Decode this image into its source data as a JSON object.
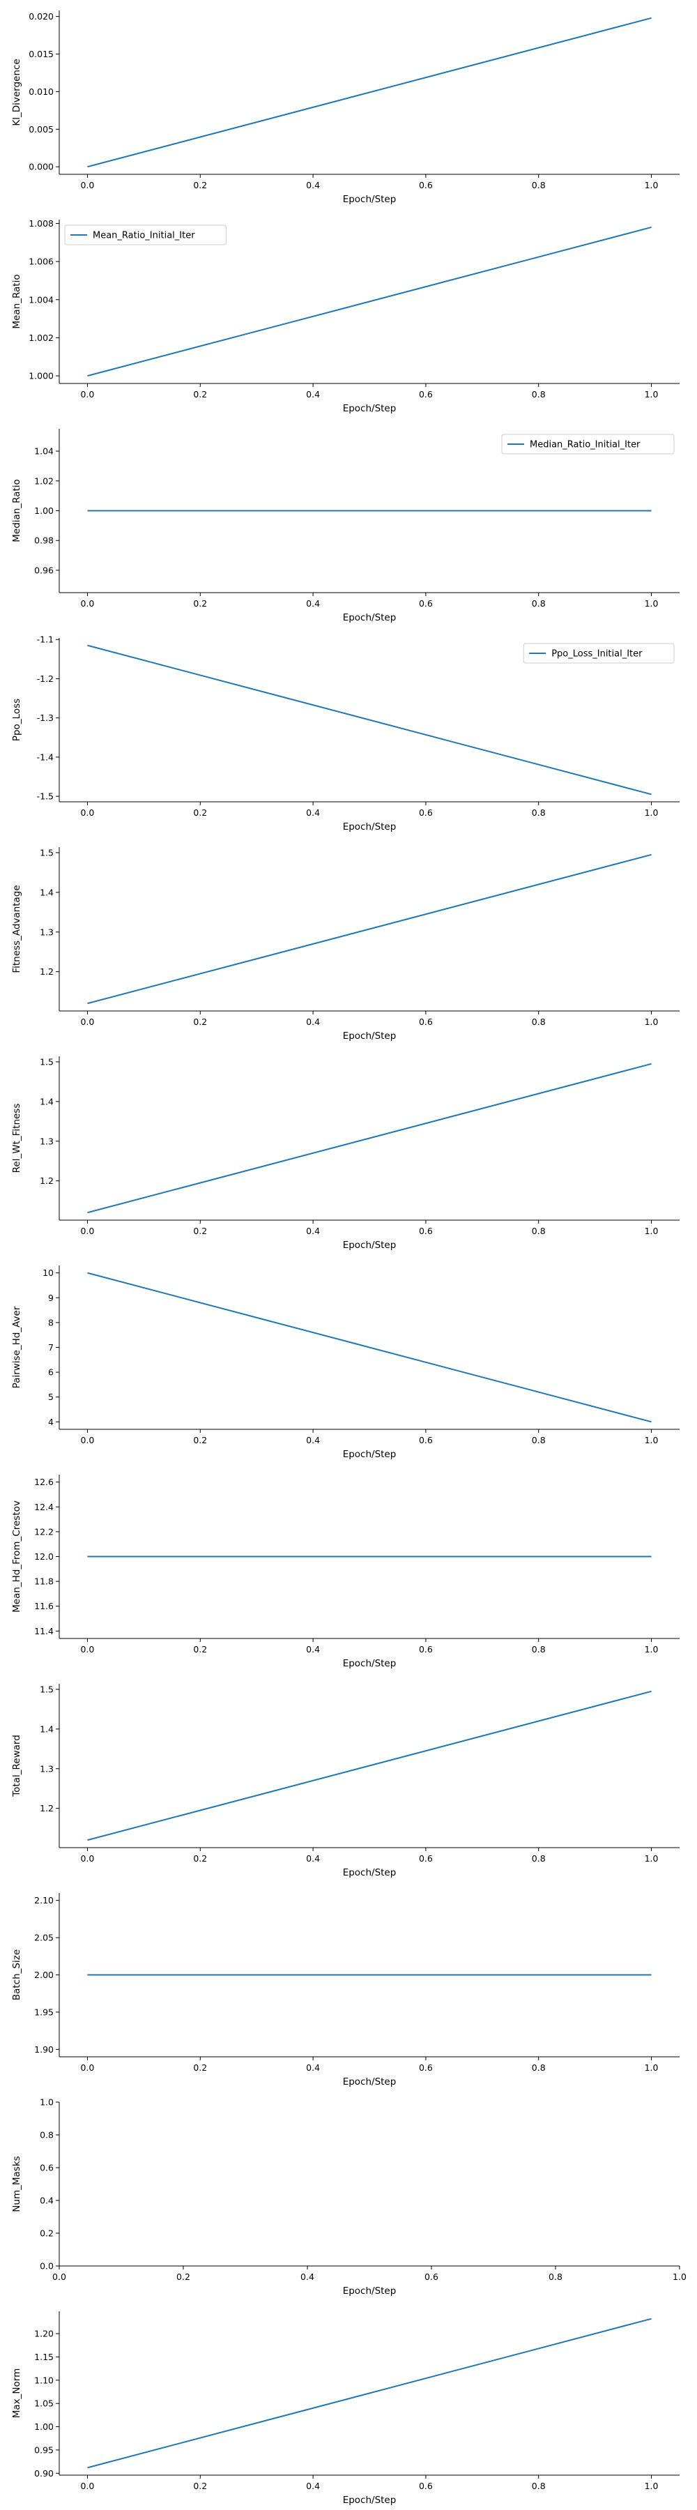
{
  "chart_data": [
    {
      "type": "line",
      "xlabel": "Epoch/Step",
      "ylabel": "Kl_Divergence",
      "x": [
        0.0,
        1.0
      ],
      "series": [
        {
          "values": [
            0.0,
            0.0198
          ],
          "color": "#1f77b4"
        }
      ],
      "xlim": [
        -0.05,
        1.05
      ],
      "ylim": [
        -0.001,
        0.0208
      ],
      "xticks": [
        "0.0",
        "0.2",
        "0.4",
        "0.6",
        "0.8",
        "1.0"
      ],
      "yticks": [
        "0.000",
        "0.005",
        "0.010",
        "0.015",
        "0.020"
      ],
      "legend": null
    },
    {
      "type": "line",
      "xlabel": "Epoch/Step",
      "ylabel": "Mean_Ratio",
      "x": [
        0.0,
        1.0
      ],
      "series": [
        {
          "name": "Mean_Ratio_Initial_Iter",
          "values": [
            1.0,
            1.0078
          ],
          "color": "#1f77b4"
        }
      ],
      "xlim": [
        -0.05,
        1.05
      ],
      "ylim": [
        0.9996,
        1.0082
      ],
      "xticks": [
        "0.0",
        "0.2",
        "0.4",
        "0.6",
        "0.8",
        "1.0"
      ],
      "yticks": [
        "1.000",
        "1.002",
        "1.004",
        "1.006",
        "1.008"
      ],
      "legend": "upper-left"
    },
    {
      "type": "line",
      "xlabel": "Epoch/Step",
      "ylabel": "Median_Ratio",
      "x": [
        0.0,
        1.0
      ],
      "series": [
        {
          "name": "Median_Ratio_Initial_Iter",
          "values": [
            1.0,
            1.0
          ],
          "color": "#1f77b4"
        }
      ],
      "xlim": [
        -0.05,
        1.05
      ],
      "ylim": [
        0.945,
        1.055
      ],
      "xticks": [
        "0.0",
        "0.2",
        "0.4",
        "0.6",
        "0.8",
        "1.0"
      ],
      "yticks": [
        "0.96",
        "0.98",
        "1.00",
        "1.02",
        "1.04"
      ],
      "legend": "upper-right"
    },
    {
      "type": "line",
      "xlabel": "Epoch/Step",
      "ylabel": "Ppo_Loss",
      "x": [
        0.0,
        1.0
      ],
      "series": [
        {
          "name": "Ppo_Loss_Initial_Iter",
          "values": [
            -1.115,
            -1.495
          ],
          "color": "#1f77b4"
        }
      ],
      "xlim": [
        -0.05,
        1.05
      ],
      "ylim": [
        -1.514,
        -1.096
      ],
      "xticks": [
        "0.0",
        "0.2",
        "0.4",
        "0.6",
        "0.8",
        "1.0"
      ],
      "yticks": [
        "-1.1",
        "-1.2",
        "-1.3",
        "-1.4",
        "-1.5"
      ],
      "legend": "upper-right"
    },
    {
      "type": "line",
      "xlabel": "Epoch/Step",
      "ylabel": "Fitness_Advantage",
      "x": [
        0.0,
        1.0
      ],
      "series": [
        {
          "values": [
            1.12,
            1.495
          ],
          "color": "#1f77b4"
        }
      ],
      "xlim": [
        -0.05,
        1.05
      ],
      "ylim": [
        1.101,
        1.514
      ],
      "xticks": [
        "0.0",
        "0.2",
        "0.4",
        "0.6",
        "0.8",
        "1.0"
      ],
      "yticks": [
        "1.2",
        "1.3",
        "1.4",
        "1.5"
      ],
      "legend": null
    },
    {
      "type": "line",
      "xlabel": "Epoch/Step",
      "ylabel": "Rel_Wt_Fitness",
      "x": [
        0.0,
        1.0
      ],
      "series": [
        {
          "values": [
            1.12,
            1.495
          ],
          "color": "#1f77b4"
        }
      ],
      "xlim": [
        -0.05,
        1.05
      ],
      "ylim": [
        1.101,
        1.514
      ],
      "xticks": [
        "0.0",
        "0.2",
        "0.4",
        "0.6",
        "0.8",
        "1.0"
      ],
      "yticks": [
        "1.2",
        "1.3",
        "1.4",
        "1.5"
      ],
      "legend": null
    },
    {
      "type": "line",
      "xlabel": "Epoch/Step",
      "ylabel": "Pairwise_Hd_Aver",
      "x": [
        0.0,
        1.0
      ],
      "series": [
        {
          "values": [
            10.0,
            4.0
          ],
          "color": "#1f77b4"
        }
      ],
      "xlim": [
        -0.05,
        1.05
      ],
      "ylim": [
        3.7,
        10.3
      ],
      "xticks": [
        "0.0",
        "0.2",
        "0.4",
        "0.6",
        "0.8",
        "1.0"
      ],
      "yticks": [
        "4",
        "5",
        "6",
        "7",
        "8",
        "9",
        "10"
      ],
      "legend": null
    },
    {
      "type": "line",
      "xlabel": "Epoch/Step",
      "ylabel": "Mean_Hd_From_Crestov",
      "x": [
        0.0,
        1.0
      ],
      "series": [
        {
          "values": [
            12.0,
            12.0
          ],
          "color": "#1f77b4"
        }
      ],
      "xlim": [
        -0.05,
        1.05
      ],
      "ylim": [
        11.34,
        12.66
      ],
      "xticks": [
        "0.0",
        "0.2",
        "0.4",
        "0.6",
        "0.8",
        "1.0"
      ],
      "yticks": [
        "11.4",
        "11.6",
        "11.8",
        "12.0",
        "12.2",
        "12.4",
        "12.6"
      ],
      "legend": null
    },
    {
      "type": "line",
      "xlabel": "Epoch/Step",
      "ylabel": "Total_Reward",
      "x": [
        0.0,
        1.0
      ],
      "series": [
        {
          "values": [
            1.12,
            1.495
          ],
          "color": "#1f77b4"
        }
      ],
      "xlim": [
        -0.05,
        1.05
      ],
      "ylim": [
        1.101,
        1.514
      ],
      "xticks": [
        "0.0",
        "0.2",
        "0.4",
        "0.6",
        "0.8",
        "1.0"
      ],
      "yticks": [
        "1.2",
        "1.3",
        "1.4",
        "1.5"
      ],
      "legend": null
    },
    {
      "type": "line",
      "xlabel": "Epoch/Step",
      "ylabel": "Batch_Size",
      "x": [
        0.0,
        1.0
      ],
      "series": [
        {
          "values": [
            2.0,
            2.0
          ],
          "color": "#1f77b4"
        }
      ],
      "xlim": [
        -0.05,
        1.05
      ],
      "ylim": [
        1.89,
        2.11
      ],
      "xticks": [
        "0.0",
        "0.2",
        "0.4",
        "0.6",
        "0.8",
        "1.0"
      ],
      "yticks": [
        "1.90",
        "1.95",
        "2.00",
        "2.05",
        "2.10"
      ],
      "legend": null
    },
    {
      "type": "line",
      "xlabel": "Epoch/Step",
      "ylabel": "Num_Masks",
      "x": [],
      "series": [],
      "xlim": [
        0.0,
        1.0
      ],
      "ylim": [
        0.0,
        1.0
      ],
      "xticks": [
        "0.0",
        "0.2",
        "0.4",
        "0.6",
        "0.8",
        "1.0"
      ],
      "yticks": [
        "0.0",
        "0.2",
        "0.4",
        "0.6",
        "0.8",
        "1.0"
      ],
      "legend": null
    },
    {
      "type": "line",
      "xlabel": "Epoch/Step",
      "ylabel": "Max_Norm",
      "x": [
        0.0,
        1.0
      ],
      "series": [
        {
          "values": [
            0.912,
            1.232
          ],
          "color": "#1f77b4"
        }
      ],
      "xlim": [
        -0.05,
        1.05
      ],
      "ylim": [
        0.896,
        1.248
      ],
      "xticks": [
        "0.0",
        "0.2",
        "0.4",
        "0.6",
        "0.8",
        "1.0"
      ],
      "yticks": [
        "0.90",
        "0.95",
        "1.00",
        "1.05",
        "1.10",
        "1.15",
        "1.20"
      ],
      "legend": null
    }
  ]
}
